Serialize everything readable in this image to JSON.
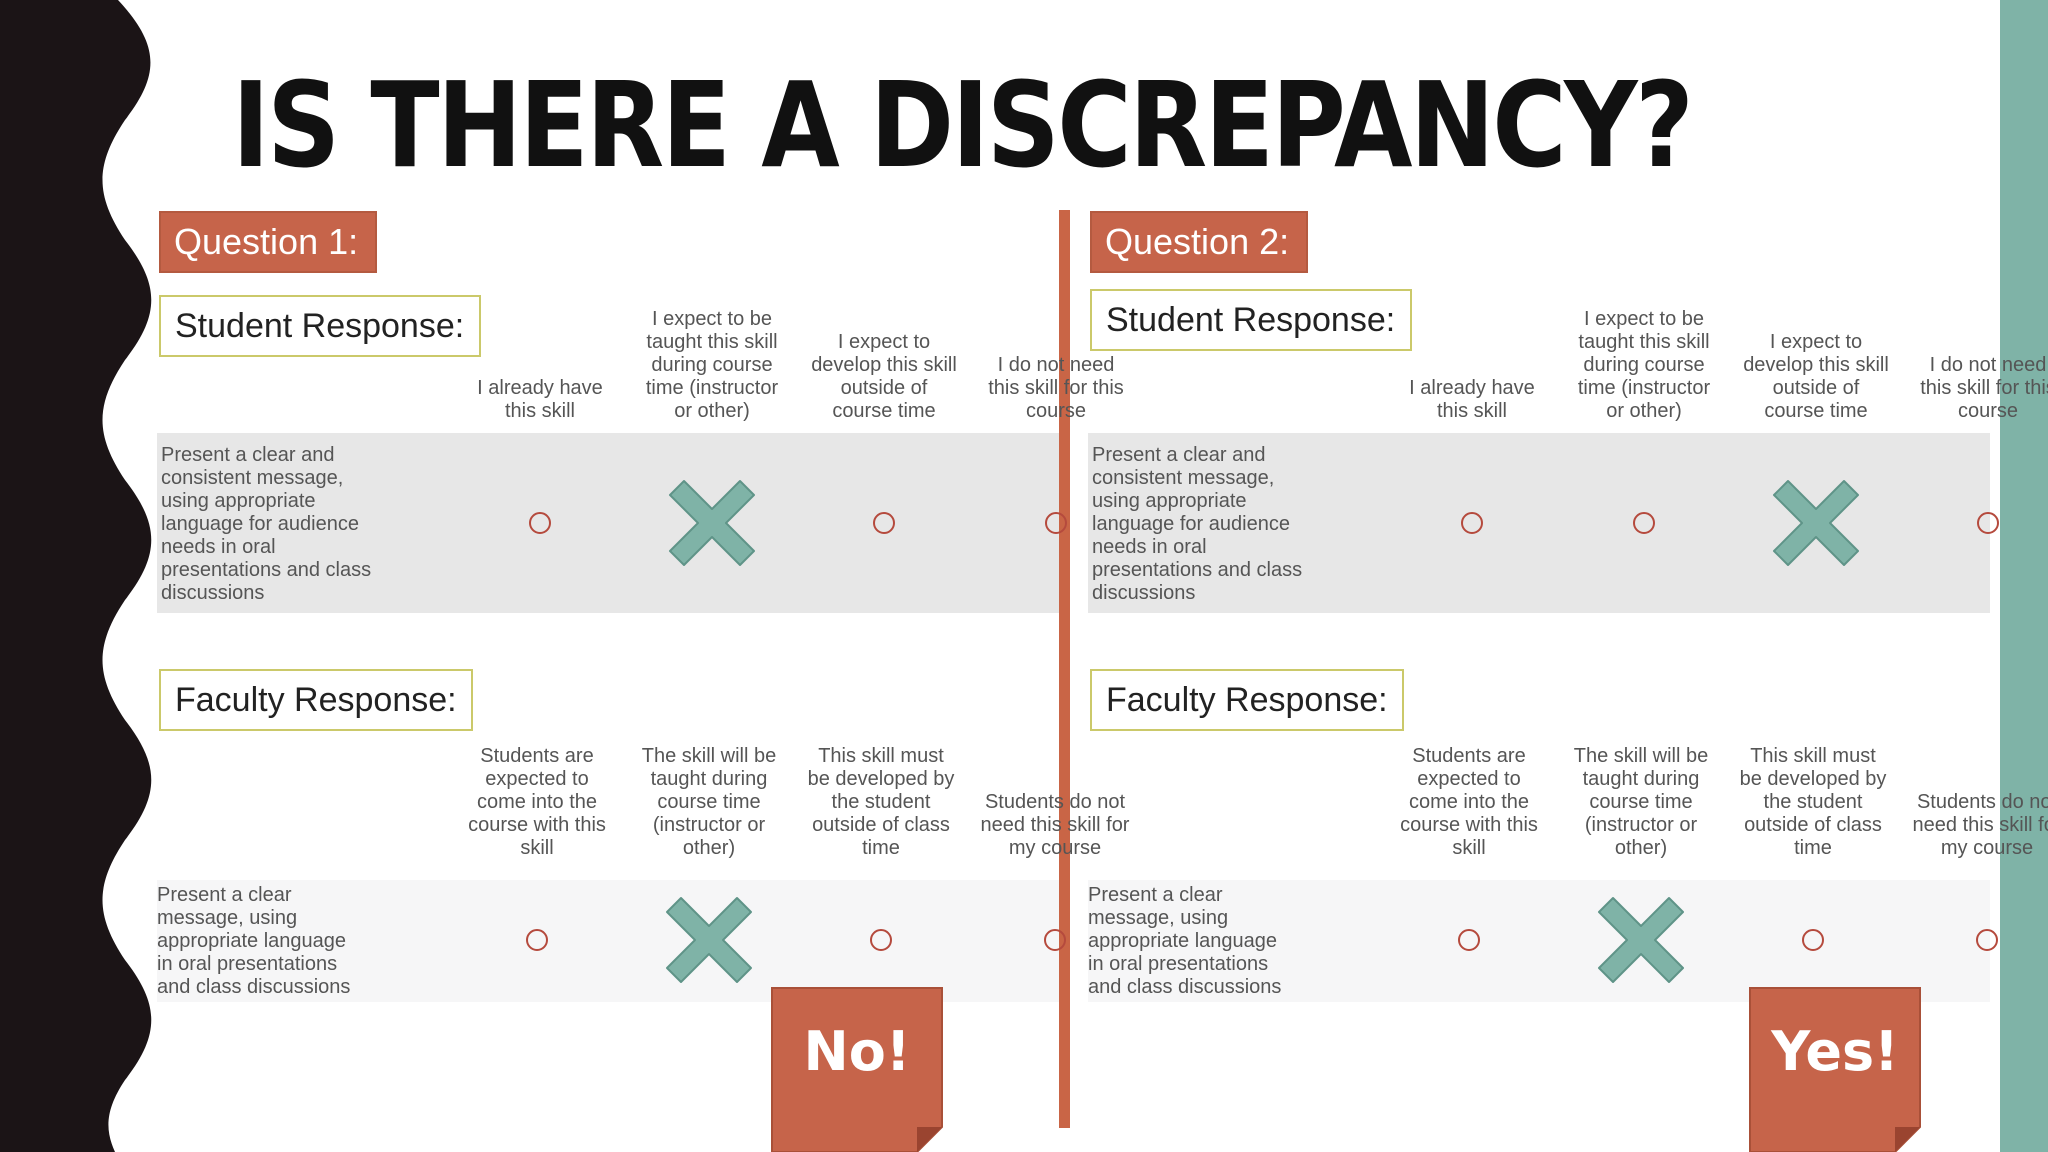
{
  "slide": {
    "title": "IS THERE A DISCREPANCY?",
    "colors": {
      "accent": "#c6644a",
      "teal": "#7fb3a7",
      "wave": "#1b1416",
      "box_border": "#cbc96a",
      "ring": "#b54a3d"
    }
  },
  "panels": [
    {
      "question_label": "Question 1:",
      "student": {
        "label": "Student Response:",
        "columns": [
          "I already have this skill",
          "I expect to be taught this skill during course time (instructor or other)",
          "I expect to develop this skill outside of course time",
          "I do not need this skill for this course"
        ],
        "row_text": "Present a clear and consistent message, using appropriate language for audience needs in oral presentations and class discussions",
        "selected_index": 1
      },
      "faculty": {
        "label": "Faculty Response:",
        "columns": [
          "Students are expected to come into the course with this skill",
          "The skill will be taught during course time (instructor or other)",
          "This skill must be developed by the student outside of class time",
          "Students do not need this skill for my course"
        ],
        "row_text": "Present a clear message, using appropriate language in oral presentations and class discussions",
        "selected_index": 1
      },
      "verdict": "No!",
      "icons": {
        "selected": "x-mark-icon",
        "unselected": "circle-icon"
      }
    },
    {
      "question_label": "Question 2:",
      "student": {
        "label": "Student Response:",
        "columns": [
          "I already have this skill",
          "I expect to be taught this skill during course time (instructor or other)",
          "I expect to develop this skill outside of course time",
          "I do not need this skill for this course"
        ],
        "row_text": "Present a clear and consistent message, using appropriate language for audience needs in oral presentations and class discussions",
        "selected_index": 2
      },
      "faculty": {
        "label": "Faculty Response:",
        "columns": [
          "Students are expected to come into the course with this skill",
          "The skill will be taught during course time (instructor or other)",
          "This skill must be developed by the student outside of class time",
          "Students do not need this skill for my course"
        ],
        "row_text": "Present a clear message, using appropriate language in oral presentations and class discussions",
        "selected_index": 1
      },
      "verdict": "Yes!",
      "icons": {
        "selected": "x-mark-icon",
        "unselected": "circle-icon"
      }
    }
  ]
}
